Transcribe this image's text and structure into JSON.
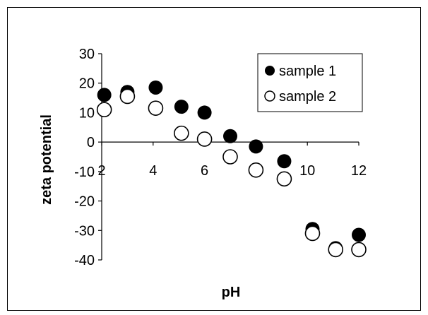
{
  "chart_data": {
    "type": "scatter",
    "title": "",
    "xlabel": "pH",
    "ylabel": "zeta potential",
    "xlim": [
      2,
      12
    ],
    "ylim": [
      -40,
      30
    ],
    "xticks": [
      "2",
      "4",
      "6",
      "8",
      "10",
      "12"
    ],
    "yticks": [
      "30",
      "20",
      "10",
      "0",
      "-10",
      "-20",
      "-30",
      "-40"
    ],
    "xtick_values": [
      2,
      4,
      6,
      8,
      10,
      12
    ],
    "ytick_values": [
      30,
      20,
      10,
      0,
      -10,
      -20,
      -30,
      -40
    ],
    "grid": false,
    "legend_position": "top-right",
    "series": [
      {
        "name": "sample 1",
        "marker": "filled-circle",
        "color": "#000000",
        "x": [
          2.1,
          3.0,
          4.1,
          5.1,
          6.0,
          7.0,
          8.0,
          9.1,
          10.2,
          11.1,
          12.0
        ],
        "y": [
          16,
          17,
          18.5,
          12,
          10,
          2,
          -1.5,
          -6.5,
          -29.5,
          -36,
          -31.5
        ]
      },
      {
        "name": "sample 2",
        "marker": "hollow-circle",
        "color": "#000000",
        "x": [
          2.1,
          3.0,
          4.1,
          5.1,
          6.0,
          7.0,
          8.0,
          9.1,
          10.2,
          11.1,
          12.0
        ],
        "y": [
          11,
          15.5,
          11.5,
          3,
          1,
          -5,
          -9.5,
          -12.5,
          -31,
          -36.5,
          -36.5
        ]
      }
    ]
  }
}
